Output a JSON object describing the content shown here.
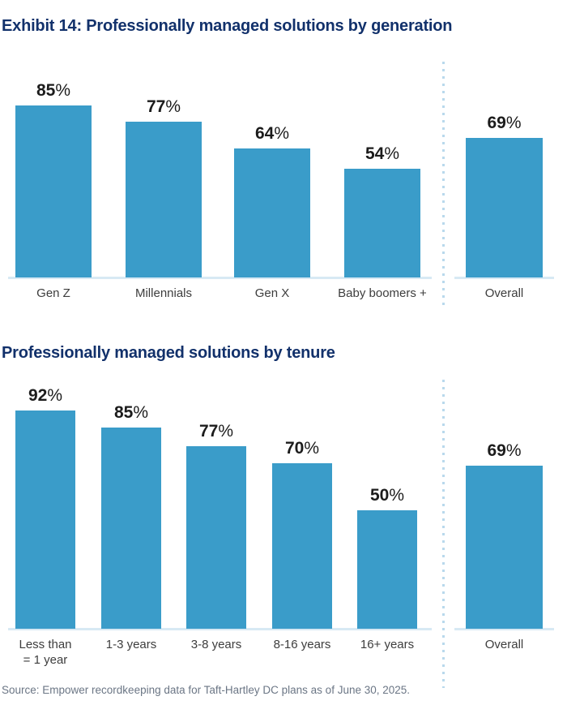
{
  "page": {
    "source": "Source: Empower recordkeeping data for Taft-Hartley DC plans as of June 30, 2025."
  },
  "colors": {
    "bar": "#3a9cc9",
    "title": "#12316b",
    "value_label": "#1c1c1c",
    "category_label": "#3d3d3d",
    "baseline": "#d7e9f4",
    "separator_dots": "#b9d9ec",
    "source_text": "#6b7685"
  },
  "chart_data": [
    {
      "type": "bar",
      "title": "Exhibit 14: Professionally managed solutions by generation",
      "categories": [
        "Gen Z",
        "Millennials",
        "Gen X",
        "Baby boomers +",
        "Overall"
      ],
      "values": [
        85,
        77,
        64,
        54,
        69
      ],
      "unit": "%",
      "data_labels": [
        "85%",
        "77%",
        "64%",
        "54%",
        "69%"
      ],
      "separator_before_index": 4,
      "xlabel": "",
      "ylabel": "",
      "ylim": [
        0,
        100
      ],
      "grid": false,
      "legend": false
    },
    {
      "type": "bar",
      "title": "Professionally managed solutions by tenure",
      "categories": [
        "Less than\n= 1 year",
        "1-3 years",
        "3-8 years",
        "8-16 years",
        "16+ years",
        "Overall"
      ],
      "values": [
        92,
        85,
        77,
        70,
        50,
        69
      ],
      "unit": "%",
      "data_labels": [
        "92%",
        "85%",
        "77%",
        "70%",
        "50%",
        "69%"
      ],
      "separator_before_index": 5,
      "xlabel": "",
      "ylabel": "",
      "ylim": [
        0,
        100
      ],
      "grid": false,
      "legend": false
    }
  ]
}
